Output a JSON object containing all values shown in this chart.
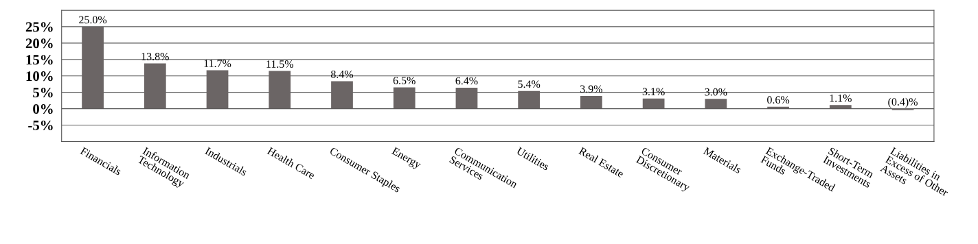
{
  "chart_data": {
    "type": "bar",
    "categories": [
      "Financials",
      "Information\nTechnology",
      "Industrials",
      "Health Care",
      "Consumer Staples",
      "Energy",
      "Communication\nServices",
      "Utilities",
      "Real Estate",
      "Consumer\nDiscretionary",
      "Materials",
      "Exchange-Traded\nFunds",
      "Short-Term\nInvestments",
      "Liabilities in\nExcess of Other\nAssets"
    ],
    "values": [
      25.0,
      13.8,
      11.7,
      11.5,
      8.4,
      6.5,
      6.4,
      5.4,
      3.9,
      3.1,
      3.0,
      0.6,
      1.1,
      -0.4
    ],
    "value_labels": [
      "25.0%",
      "13.8%",
      "11.7%",
      "11.5%",
      "8.4%",
      "6.5%",
      "6.4%",
      "5.4%",
      "3.9%",
      "3.1%",
      "3.0%",
      "0.6%",
      "1.1%",
      "(0.4)%"
    ],
    "color": "#6b6565",
    "ylim": [
      -10,
      30
    ],
    "yticks": [
      {
        "value": -10,
        "label": null
      },
      {
        "value": -5,
        "label": "-5%"
      },
      {
        "value": 0,
        "label": "0%"
      },
      {
        "value": 5,
        "label": "5%"
      },
      {
        "value": 10,
        "label": "10%"
      },
      {
        "value": 15,
        "label": "15%"
      },
      {
        "value": 20,
        "label": "20%"
      },
      {
        "value": 25,
        "label": "25%"
      },
      {
        "value": 30,
        "label": null
      }
    ],
    "grid": "y"
  }
}
